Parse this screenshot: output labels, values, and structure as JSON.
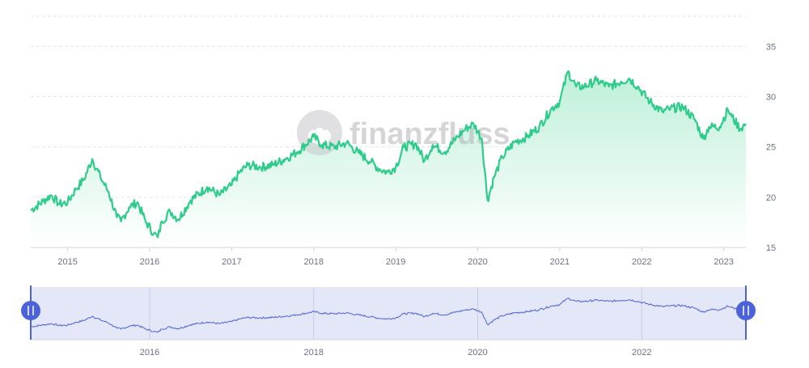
{
  "watermark": {
    "text": "finanzfluss",
    "icon": "hippo-logo-icon"
  },
  "colors": {
    "line": "#2ecc8a",
    "area_top": "#b9eed6",
    "area_bottom": "#ffffff",
    "grid": "#e3e6ec",
    "tick_text": "#6b7280",
    "navigator_line": "#4b63d6",
    "navigator_fill": "#e3e7f8",
    "navigator_handle": "#4b63d6"
  },
  "chart_data": {
    "type": "line",
    "title": "",
    "xlabel": "",
    "ylabel": "",
    "x_ticks": [
      "2015",
      "2016",
      "2017",
      "2018",
      "2019",
      "2020",
      "2021",
      "2022",
      "2023"
    ],
    "y_ticks": [
      "15",
      "20",
      "25",
      "30",
      "35"
    ],
    "ylim": [
      15,
      38
    ],
    "xlim": [
      2014.55,
      2023.27
    ],
    "grid": true,
    "series": [
      {
        "x": [
          2014.55,
          2014.7,
          2014.8,
          2014.9,
          2015.0,
          2015.1,
          2015.2,
          2015.3,
          2015.4,
          2015.5,
          2015.6,
          2015.65,
          2015.75,
          2015.85,
          2015.95,
          2016.05,
          2016.1,
          2016.15,
          2016.25,
          2016.35,
          2016.5,
          2016.7,
          2016.85,
          2017.0,
          2017.1,
          2017.2,
          2017.35,
          2017.5,
          2017.65,
          2017.8,
          2018.0,
          2018.1,
          2018.25,
          2018.4,
          2018.55,
          2018.7,
          2018.8,
          2018.9,
          2019.0,
          2019.1,
          2019.25,
          2019.35,
          2019.45,
          2019.6,
          2019.75,
          2019.85,
          2019.95,
          2020.05,
          2020.12,
          2020.2,
          2020.3,
          2020.45,
          2020.6,
          2020.75,
          2020.9,
          2021.0,
          2021.1,
          2021.2,
          2021.3,
          2021.45,
          2021.6,
          2021.75,
          2021.85,
          2021.95,
          2022.1,
          2022.25,
          2022.35,
          2022.5,
          2022.65,
          2022.75,
          2022.82,
          2022.95,
          2023.05,
          2023.1,
          2023.2,
          2023.27
        ],
        "values": [
          18.7,
          19.6,
          20.2,
          19.3,
          19.5,
          20.8,
          21.8,
          23.8,
          22.0,
          20.5,
          18.0,
          17.6,
          19.0,
          19.5,
          17.6,
          16.4,
          16.0,
          17.6,
          18.6,
          17.8,
          19.7,
          21.0,
          20.2,
          21.2,
          22.5,
          23.2,
          23.0,
          23.2,
          23.8,
          24.5,
          26.0,
          25.2,
          25.0,
          25.4,
          24.4,
          23.5,
          22.8,
          22.5,
          23.0,
          25.0,
          25.3,
          23.6,
          25.2,
          24.5,
          26.0,
          26.8,
          27.3,
          25.8,
          19.7,
          22.0,
          24.0,
          25.5,
          26.0,
          27.0,
          28.8,
          29.5,
          32.5,
          31.0,
          31.0,
          31.6,
          31.0,
          31.5,
          31.8,
          31.0,
          29.5,
          28.5,
          28.8,
          29.0,
          27.7,
          25.8,
          27.0,
          27.0,
          28.7,
          28.0,
          26.8,
          27.3
        ]
      }
    ]
  },
  "navigator": {
    "x_ticks": [
      "2016",
      "2018",
      "2020",
      "2022"
    ],
    "left_handle_icon": "handle-grip-icon",
    "right_handle_icon": "handle-grip-icon"
  }
}
